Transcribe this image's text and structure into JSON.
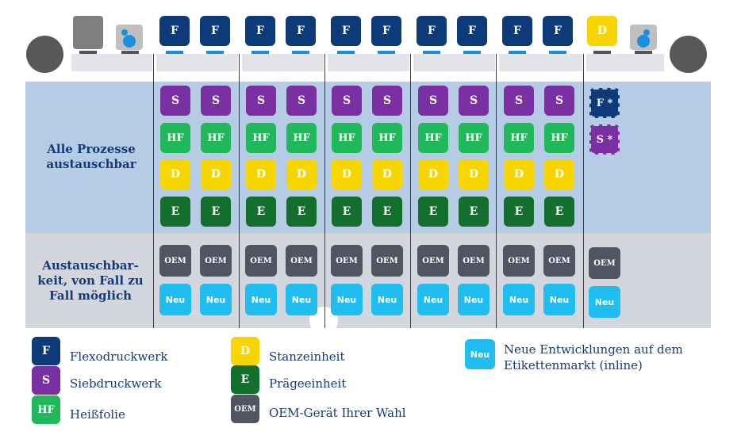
{
  "row_labels": {
    "interchangeable": [
      "Alle Prozesse",
      "austauschbar"
    ],
    "case_by_case": [
      "Austauschbar-",
      "keit, von Fall zu",
      "Fall  möglich"
    ]
  },
  "top_units": [
    "F",
    "F",
    "F",
    "F",
    "F",
    "F",
    "F",
    "F",
    "F",
    "F",
    "D"
  ],
  "station_column": {
    "process_rows": [
      "S",
      "HF",
      "D",
      "E"
    ],
    "oem": "OEM",
    "new": "Neu"
  },
  "optional_column": [
    "F *",
    "S *",
    "OEM",
    "Neu"
  ],
  "legend": [
    {
      "code": "F",
      "text": "Flexodruckwerk"
    },
    {
      "code": "S",
      "text": "Siebdruckwerk"
    },
    {
      "code": "HF",
      "text": "Heißfolie"
    },
    {
      "code": "D",
      "text": "Stanzeinheit"
    },
    {
      "code": "E",
      "text": "Prägeeinheit"
    },
    {
      "code": "OEM",
      "text": "OEM-Gerät Ihrer Wahl"
    },
    {
      "code": "Neu",
      "text": "Neue Entwicklungen auf dem Etikettenmarkt (inline)"
    }
  ],
  "colors": {
    "F": "#0d3b7a",
    "S": "#7a2fa3",
    "HF": "#1fb85a",
    "D": "#f7d500",
    "E": "#136f2c",
    "OEM": "#4f5563",
    "Neu": "#1fbdf0",
    "band_blue": "#b6cbe4",
    "band_grey": "#d3d6dd",
    "label": "#153a7a"
  }
}
